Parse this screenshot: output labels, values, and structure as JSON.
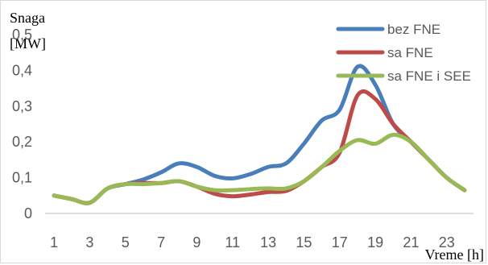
{
  "chart_data": {
    "type": "line",
    "ylabel_line1": "Snaga",
    "ylabel_line2": "[MW]",
    "xlabel": "Vreme [h]",
    "x": [
      1,
      2,
      3,
      4,
      5,
      6,
      7,
      8,
      9,
      10,
      11,
      12,
      13,
      14,
      15,
      16,
      17,
      18,
      19,
      20,
      21,
      22,
      23,
      24
    ],
    "x_ticks": [
      "1",
      "3",
      "5",
      "7",
      "9",
      "11",
      "13",
      "15",
      "17",
      "19",
      "21",
      "23"
    ],
    "x_tick_values": [
      1,
      3,
      5,
      7,
      9,
      11,
      13,
      15,
      17,
      19,
      21,
      23
    ],
    "y_ticks": [
      "0",
      "0,1",
      "0,2",
      "0,3",
      "0,4",
      "0,5"
    ],
    "y_tick_values": [
      0,
      0.1,
      0.2,
      0.3,
      0.4,
      0.5
    ],
    "ylim": [
      0,
      0.5
    ],
    "xlim": [
      0.5,
      24.5
    ],
    "grid": false,
    "legend_position": "top-right",
    "series": [
      {
        "name": "bez FNE",
        "color": "#4a7ebb",
        "values": [
          0.05,
          0.04,
          0.03,
          0.07,
          0.082,
          0.095,
          0.115,
          0.14,
          0.13,
          0.105,
          0.098,
          0.11,
          0.13,
          0.14,
          0.195,
          0.26,
          0.29,
          0.41,
          0.36,
          0.25,
          0.2,
          0.15,
          0.1,
          0.065
        ]
      },
      {
        "name": "sa FNE",
        "color": "#be4b48",
        "values": [
          0.05,
          0.04,
          0.03,
          0.07,
          0.082,
          0.085,
          0.085,
          0.09,
          0.075,
          0.055,
          0.048,
          0.053,
          0.06,
          0.063,
          0.09,
          0.13,
          0.17,
          0.33,
          0.32,
          0.25,
          0.2,
          0.15,
          0.1,
          0.065
        ]
      },
      {
        "name": "sa FNE i SEE",
        "color": "#98b954",
        "values": [
          0.05,
          0.04,
          0.03,
          0.07,
          0.082,
          0.082,
          0.085,
          0.09,
          0.075,
          0.065,
          0.065,
          0.068,
          0.07,
          0.07,
          0.09,
          0.13,
          0.175,
          0.205,
          0.195,
          0.22,
          0.2,
          0.15,
          0.1,
          0.065
        ]
      }
    ]
  }
}
